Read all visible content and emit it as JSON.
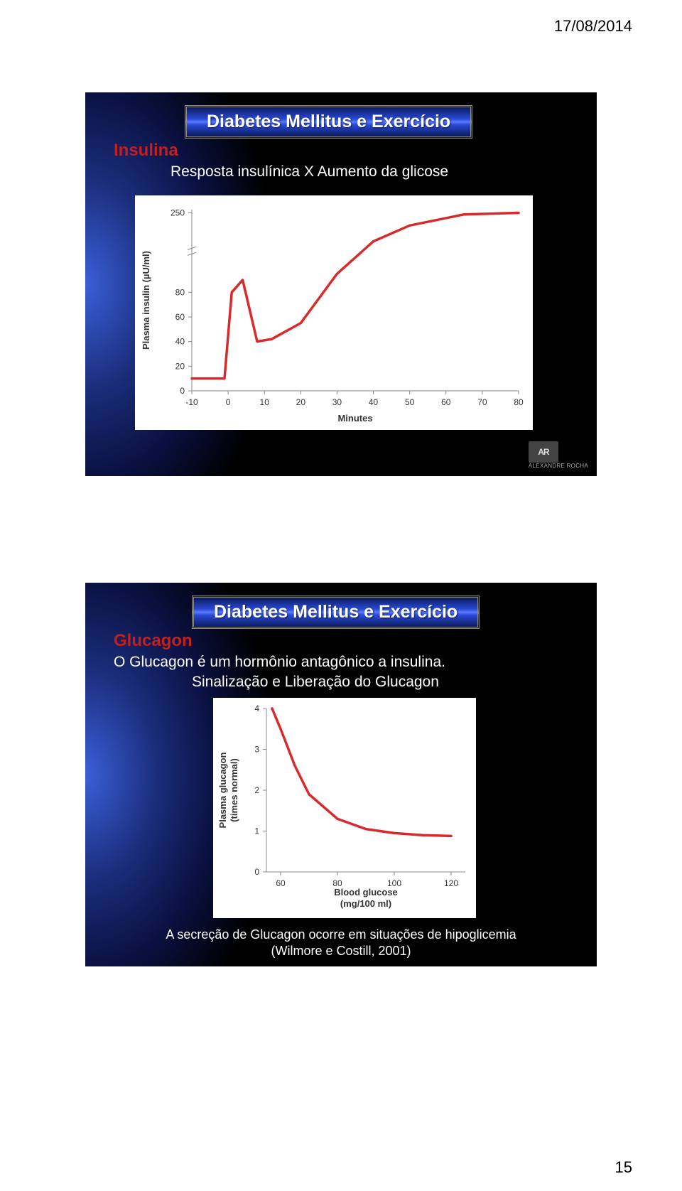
{
  "header": {
    "date": "17/08/2014"
  },
  "footer": {
    "page": "15"
  },
  "slide1": {
    "title": "Diabetes Mellitus e Exercício",
    "section": {
      "label": "Insulina",
      "color": "#c02020"
    },
    "body": "Resposta insulínica X Aumento da glicose",
    "chart": {
      "type": "line",
      "background": "#ffffff",
      "curve_color": "#d82a2a",
      "axis_color": "#888888",
      "text_color": "#333333",
      "y_label": "Plasma insulin (µU/ml)",
      "y_ticks": [
        0,
        20,
        40,
        60,
        80,
        250
      ],
      "y_broken": true,
      "x_label": "Minutes",
      "x_ticks": [
        -10,
        0,
        10,
        20,
        30,
        40,
        50,
        60,
        70,
        80
      ],
      "xlim": [
        -10,
        80
      ],
      "points": [
        [
          -10,
          10
        ],
        [
          -1,
          10
        ],
        [
          1,
          80
        ],
        [
          4,
          90
        ],
        [
          8,
          40
        ],
        [
          12,
          42
        ],
        [
          20,
          55
        ],
        [
          30,
          95
        ],
        [
          40,
          160
        ],
        [
          50,
          210
        ],
        [
          65,
          245
        ],
        [
          80,
          250
        ]
      ],
      "label_fontsize": 13,
      "tick_fontsize": 12
    },
    "logo": {
      "badge": "AR",
      "name": "ALEXANDRE ROCHA"
    }
  },
  "slide2": {
    "title": "Diabetes Mellitus e Exercício",
    "section": {
      "label": "Glucagon",
      "color": "#c02020"
    },
    "body": "O Glucagon é um hormônio antagônico a insulina.",
    "subhead": "Sinalização e Liberação do Glucagon",
    "chart": {
      "type": "line",
      "background": "#ffffff",
      "curve_color": "#d82a2a",
      "axis_color": "#888888",
      "text_color": "#333333",
      "y_label": "Plasma glucagon\n(times normal)",
      "y_ticks": [
        0,
        1,
        2,
        3,
        4
      ],
      "ylim": [
        0,
        4
      ],
      "x_label": "Blood glucose\n(mg/100 ml)",
      "x_ticks": [
        60,
        80,
        100,
        120
      ],
      "xlim": [
        55,
        125
      ],
      "points": [
        [
          57,
          4.0
        ],
        [
          60,
          3.5
        ],
        [
          65,
          2.6
        ],
        [
          70,
          1.9
        ],
        [
          80,
          1.3
        ],
        [
          90,
          1.05
        ],
        [
          100,
          0.95
        ],
        [
          110,
          0.9
        ],
        [
          120,
          0.88
        ]
      ],
      "label_fontsize": 13,
      "tick_fontsize": 12
    },
    "caption1": "A secreção de Glucagon ocorre em situações de hipoglicemia",
    "caption2": "(Wilmore e Costill, 2001)"
  }
}
